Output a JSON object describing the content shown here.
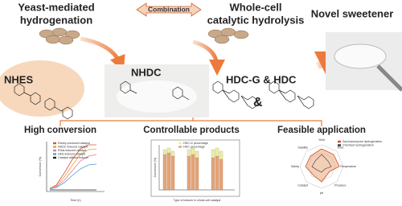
{
  "header": {
    "left_title": [
      "Yeast-mediated",
      "hydrogenation"
    ],
    "center_label": "Combination",
    "right_title": [
      "Whole-cell",
      "catalytic hydrolysis"
    ],
    "product_title": "Novel sweetener"
  },
  "compounds": {
    "first": "NHES",
    "second": "NHDC",
    "third": "HDC-G & HDC",
    "ampersand": "&"
  },
  "panels": [
    {
      "title": "High conversion",
      "legend": [
        "Raney-produced catalyst",
        "NHDC-induced catalyst",
        "RGal-induced catalyst",
        "HES-induced catalyst",
        "Catalyst without inducer"
      ],
      "x_label": "Time (h)",
      "y_label": "Conversion (%)"
    },
    {
      "title": "Controllable products",
      "legend": [
        "HDC-G percentage",
        "HDC percentage"
      ],
      "x_label": "Type of inducer in whole-cell catalyst",
      "y_label": "Conversion (%)"
    },
    {
      "title": "Feasible application",
      "legend": [
        "Saccharomyces hydrogenation",
        "Chemical hydrogenation"
      ],
      "axes": [
        "Yield",
        "Time",
        "Temperature",
        "Pressure",
        "pH",
        "Catalyst",
        "Safety",
        "Stability"
      ]
    }
  ]
}
